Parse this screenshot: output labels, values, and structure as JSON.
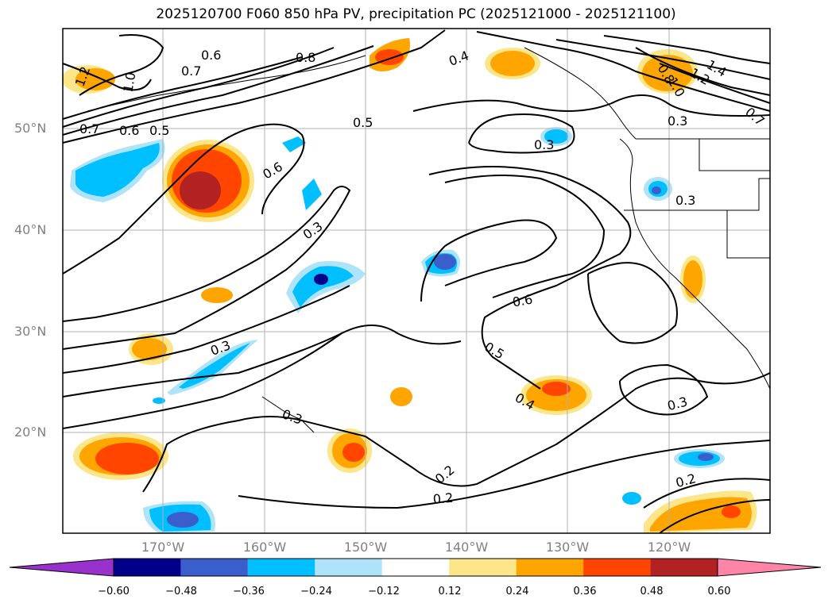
{
  "title": "2025120700 F060 850 hPa PV, precipitation PC (2025121000 - 2025121100)",
  "lat_labels": [
    "50°N",
    "40°N",
    "30°N",
    "20°N"
  ],
  "lon_labels": [
    "170°W",
    "160°W",
    "150°W",
    "140°W",
    "130°W",
    "120°W"
  ],
  "contour_labels": [
    "0.6",
    "0.7",
    "0.8",
    "1.0",
    "1.2",
    "0.7",
    "0.6",
    "0.5",
    "0.5",
    "0.6",
    "0.3",
    "0.3",
    "0.3",
    "0.4",
    "1.4",
    "1.2",
    "1.0",
    "0.8",
    "0.3",
    "0.3",
    "0.6",
    "0.5",
    "0.4",
    "0.3",
    "0.3",
    "0.2",
    "0.2",
    "0.2",
    "0.7"
  ],
  "colorbar": {
    "ticks": [
      "−0.60",
      "−0.48",
      "−0.36",
      "−0.24",
      "−0.12",
      "0.12",
      "0.24",
      "0.36",
      "0.48",
      "0.60"
    ],
    "colors": [
      "#9932cc",
      "#00008b",
      "#3a5fcd",
      "#00bfff",
      "#aee3f9",
      "#ffffff",
      "#fde68a",
      "#ffa500",
      "#ff4500",
      "#b22222",
      "#ff85a8"
    ]
  }
}
